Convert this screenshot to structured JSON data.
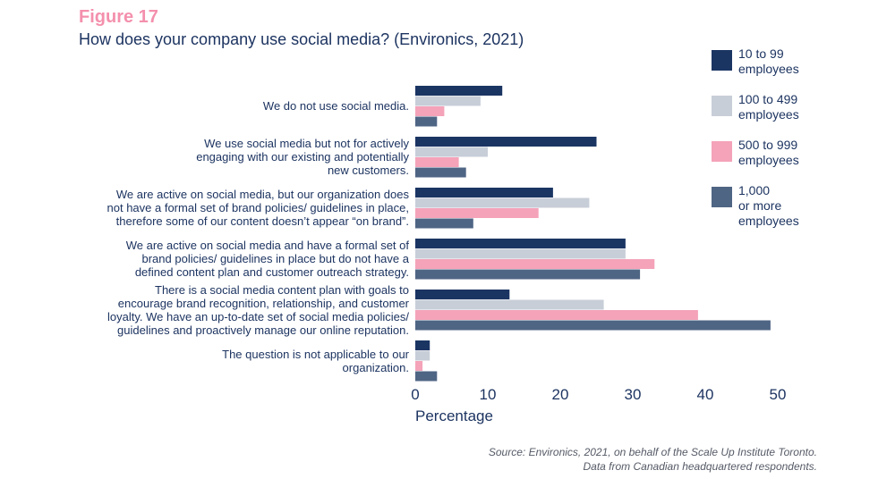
{
  "figure_label": "Figure 17",
  "figure_title": "How does your company use social media? (Environics, 2021)",
  "source_lines": [
    "Source: Environics, 2021, on behalf of the Scale Up Institute Toronto.",
    "Data from Canadian headquartered respondents."
  ],
  "chart_data": {
    "type": "bar",
    "orientation": "horizontal",
    "title": "How does your company use social media? (Environics, 2021)",
    "xlabel": "Percentage",
    "ylabel": "",
    "xlim": [
      0,
      50
    ],
    "xticks": [
      0,
      10,
      20,
      30,
      40,
      50
    ],
    "grid": false,
    "legend_position": "right",
    "categories": [
      [
        "We do not use social media."
      ],
      [
        "We use social media but not for actively",
        "engaging with our existing and potentially",
        "new customers."
      ],
      [
        "We are active on social media, but our organization does",
        "not have a formal set of brand policies/ guidelines in place,",
        "therefore some of our content doesn’t appear “on brand”."
      ],
      [
        "We are active on social media and have a formal set of",
        "brand policies/ guidelines in place but do not have a",
        "defined content plan and customer outreach strategy."
      ],
      [
        "There is a social media content plan with goals to",
        "encourage brand recognition, relationship, and customer",
        "loyalty. We have an up-to-date set of social media policies/",
        "guidelines and proactively manage our online reputation."
      ],
      [
        "The question is not applicable to our",
        "organization."
      ]
    ],
    "series": [
      {
        "name": "10 to 99\nemployees",
        "color": "#1b3563",
        "values": [
          12,
          25,
          19,
          29,
          13,
          2
        ]
      },
      {
        "name": "100 to 499\nemployees",
        "color": "#c8ced8",
        "values": [
          9,
          10,
          24,
          29,
          26,
          2
        ]
      },
      {
        "name": "500 to 999\nemployees",
        "color": "#f4a3b9",
        "values": [
          4,
          6,
          17,
          33,
          39,
          1
        ]
      },
      {
        "name": "1,000\nor more\nemployees",
        "color": "#4f6584",
        "values": [
          3,
          7,
          8,
          31,
          49,
          3
        ]
      }
    ]
  }
}
